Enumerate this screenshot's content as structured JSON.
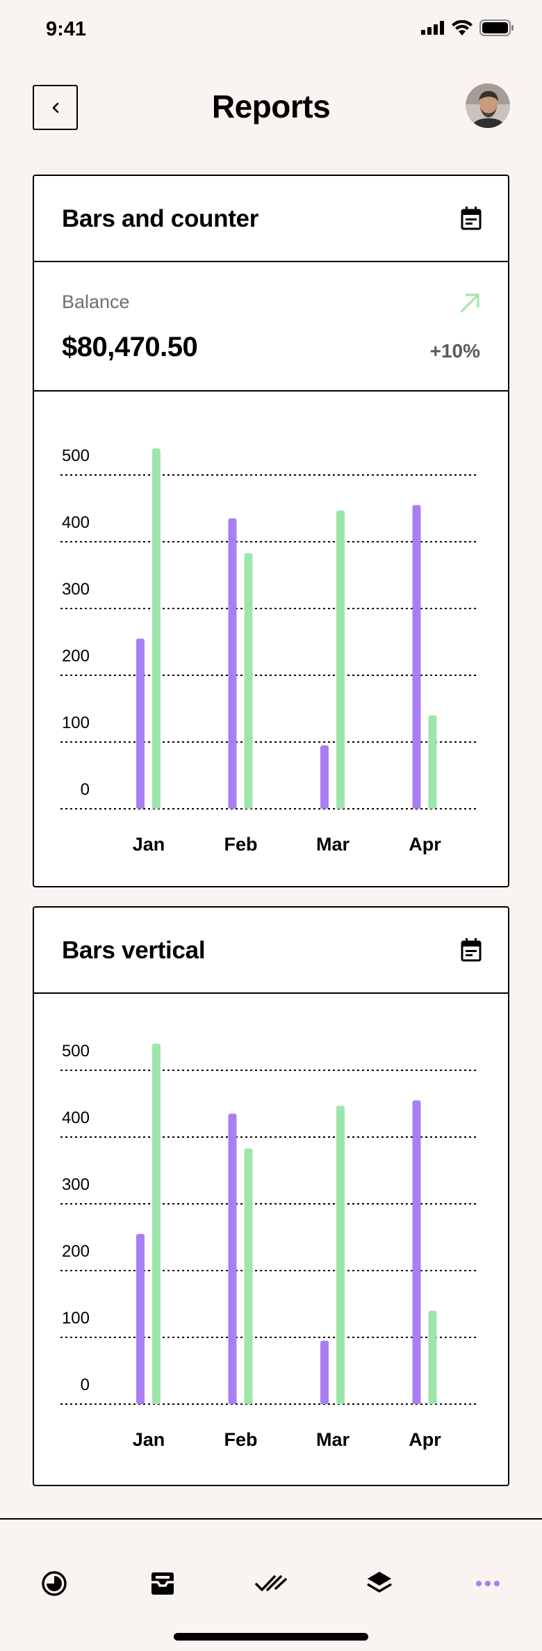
{
  "status_bar": {
    "time": "9:41"
  },
  "header": {
    "title": "Reports"
  },
  "colors": {
    "series_a": "#a97ef2",
    "series_b": "#9ee5ac",
    "trend_up": "#9ee5ac",
    "more_active": "#a97ef2"
  },
  "card1": {
    "title": "Bars and counter",
    "counter": {
      "label": "Balance",
      "value": "$80,470.50",
      "change": "+10%"
    }
  },
  "card2": {
    "title": "Bars vertical"
  },
  "chart_data": [
    {
      "type": "bar",
      "categories": [
        "Jan",
        "Feb",
        "Mar",
        "Apr"
      ],
      "series": [
        {
          "values": [
            255,
            435,
            95,
            455
          ]
        },
        {
          "values": [
            540,
            383,
            447,
            140
          ]
        }
      ],
      "yticks": [
        0,
        100,
        200,
        300,
        400,
        500
      ],
      "ylim": [
        0,
        500
      ],
      "grid": true
    },
    {
      "type": "bar",
      "categories": [
        "Jan",
        "Feb",
        "Mar",
        "Apr"
      ],
      "series": [
        {
          "values": [
            255,
            435,
            95,
            455
          ]
        },
        {
          "values": [
            540,
            383,
            447,
            140
          ]
        }
      ],
      "yticks": [
        0,
        100,
        200,
        300,
        400,
        500
      ],
      "ylim": [
        0,
        500
      ],
      "grid": true
    }
  ],
  "tabbar": {
    "items": [
      "clock-icon",
      "inbox-icon",
      "double-check-icon",
      "layers-icon",
      "more-icon"
    ]
  }
}
